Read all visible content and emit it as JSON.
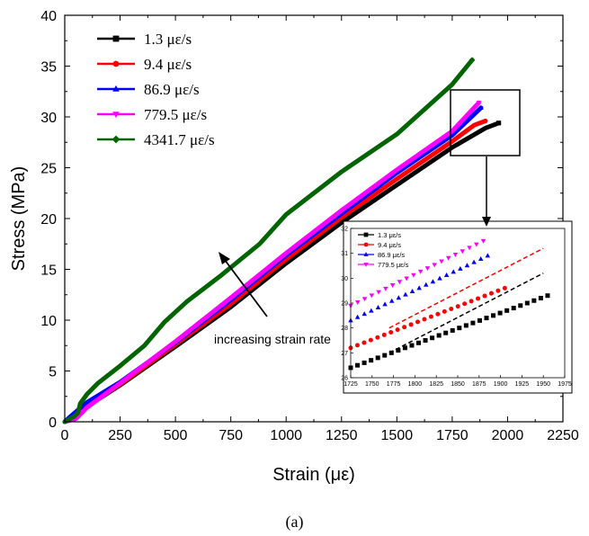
{
  "chart_data": [
    {
      "type": "line",
      "xlabel": "Strain (με)",
      "ylabel": "Stress (MPa)",
      "xlim": [
        0,
        2250
      ],
      "ylim": [
        0,
        40
      ],
      "x_ticks": [
        "0",
        "250",
        "500",
        "750",
        "1000",
        "1250",
        "1500",
        "1750",
        "2000",
        "2250"
      ],
      "y_ticks": [
        "0",
        "5",
        "10",
        "15",
        "20",
        "25",
        "30",
        "35",
        "40"
      ],
      "legend_position": "top-left",
      "annotation": "increasing strain rate",
      "caption": "(a)",
      "series": [
        {
          "name": "1.3 με/s",
          "color": "#000000",
          "marker": "square",
          "points": [
            [
              0,
              0
            ],
            [
              50,
              0.4
            ],
            [
              100,
              1.5
            ],
            [
              250,
              3.6
            ],
            [
              500,
              7.4
            ],
            [
              750,
              11.3
            ],
            [
              1000,
              15.6
            ],
            [
              1250,
              19.6
            ],
            [
              1500,
              23.3
            ],
            [
              1750,
              27.0
            ],
            [
              1900,
              28.9
            ],
            [
              1960,
              29.4
            ]
          ]
        },
        {
          "name": "9.4 με/s",
          "color": "#ff0000",
          "marker": "circle",
          "points": [
            [
              0,
              0
            ],
            [
              50,
              0.4
            ],
            [
              100,
              1.5
            ],
            [
              250,
              3.7
            ],
            [
              500,
              7.6
            ],
            [
              750,
              11.6
            ],
            [
              1000,
              16.0
            ],
            [
              1250,
              20.1
            ],
            [
              1500,
              23.9
            ],
            [
              1750,
              27.6
            ],
            [
              1850,
              29.2
            ],
            [
              1900,
              29.6
            ]
          ]
        },
        {
          "name": "86.9 με/s",
          "color": "#0000ff",
          "marker": "triangle-up",
          "points": [
            [
              0,
              0
            ],
            [
              30,
              0.6
            ],
            [
              100,
              1.9
            ],
            [
              250,
              3.9
            ],
            [
              500,
              7.8
            ],
            [
              750,
              12.0
            ],
            [
              1000,
              16.4
            ],
            [
              1250,
              20.5
            ],
            [
              1500,
              24.5
            ],
            [
              1750,
              28.2
            ],
            [
              1880,
              30.9
            ]
          ]
        },
        {
          "name": "779.5 με/s",
          "color": "#ff00ff",
          "marker": "triangle-down",
          "points": [
            [
              0,
              0
            ],
            [
              50,
              0.3
            ],
            [
              100,
              1.4
            ],
            [
              250,
              3.8
            ],
            [
              500,
              7.9
            ],
            [
              750,
              12.2
            ],
            [
              1000,
              16.6
            ],
            [
              1250,
              20.8
            ],
            [
              1500,
              24.8
            ],
            [
              1750,
              28.6
            ],
            [
              1870,
              31.4
            ]
          ]
        },
        {
          "name": "4341.7 με/s",
          "color": "#006400",
          "marker": "diamond",
          "points": [
            [
              0,
              0
            ],
            [
              40,
              0.5
            ],
            [
              60,
              0.9
            ],
            [
              70,
              1.8
            ],
            [
              100,
              2.7
            ],
            [
              150,
              3.8
            ],
            [
              250,
              5.5
            ],
            [
              360,
              7.5
            ],
            [
              450,
              9.8
            ],
            [
              550,
              11.8
            ],
            [
              700,
              14.3
            ],
            [
              880,
              17.5
            ],
            [
              1000,
              20.4
            ],
            [
              1250,
              24.6
            ],
            [
              1500,
              28.3
            ],
            [
              1750,
              33.2
            ],
            [
              1840,
              35.6
            ]
          ]
        }
      ]
    },
    {
      "type": "scatter",
      "role": "inset",
      "xlim": [
        1725,
        1975
      ],
      "ylim": [
        26,
        32
      ],
      "x_ticks": [
        "1725",
        "1750",
        "1775",
        "1800",
        "1825",
        "1850",
        "1875",
        "1900",
        "1925",
        "1950",
        "1975"
      ],
      "y_ticks": [
        "26",
        "27",
        "28",
        "29",
        "30",
        "31",
        "32"
      ],
      "series": [
        {
          "name": "1.3 με/s",
          "color": "#000000",
          "marker": "square",
          "x_range": [
            1725,
            1955
          ],
          "y_start": 26.4,
          "y_end": 29.3
        },
        {
          "name": "9.4 με/s",
          "color": "#ff0000",
          "marker": "circle",
          "x_range": [
            1725,
            1905
          ],
          "y_start": 27.2,
          "y_end": 29.6
        },
        {
          "name": "86.9 με/s",
          "color": "#0000ff",
          "marker": "triangle-up",
          "x_range": [
            1725,
            1885
          ],
          "y_start": 28.3,
          "y_end": 30.9
        },
        {
          "name": "779.5 με/s",
          "color": "#ff00ff",
          "marker": "triangle-down",
          "x_range": [
            1725,
            1880
          ],
          "y_start": 28.9,
          "y_end": 31.5
        }
      ],
      "dashed_trendlines": [
        {
          "color": "#000000",
          "from": [
            1770,
            27.0
          ],
          "to": [
            1950,
            30.2
          ]
        },
        {
          "color": "#ff0000",
          "from": [
            1770,
            28.0
          ],
          "to": [
            1950,
            31.2
          ]
        }
      ]
    }
  ]
}
